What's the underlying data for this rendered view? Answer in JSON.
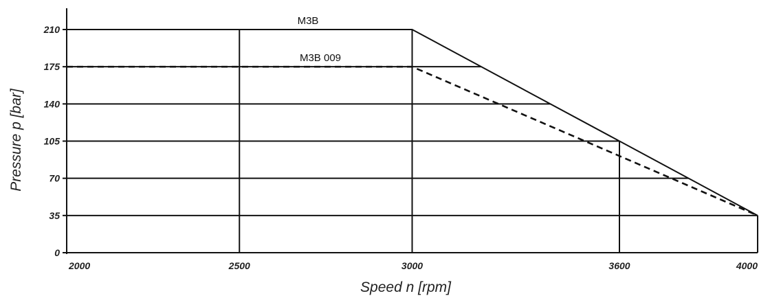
{
  "chart_data": {
    "type": "line",
    "title": "",
    "xlabel": "Speed n [rpm]",
    "ylabel": "Pressure p [bar]",
    "xlim": [
      2000,
      4000
    ],
    "ylim": [
      0,
      210
    ],
    "x_ticks": [
      2000,
      2500,
      3000,
      3600,
      4000
    ],
    "y_ticks": [
      0,
      35,
      70,
      105,
      140,
      175,
      210
    ],
    "grid": true,
    "legend": "none",
    "series": [
      {
        "name": "M3B",
        "style": "solid",
        "x": [
          2000,
          3000,
          4000
        ],
        "y": [
          210,
          210,
          35
        ]
      },
      {
        "name": "M3B 009",
        "style": "dashed",
        "x": [
          2000,
          3000,
          4000
        ],
        "y": [
          175,
          175,
          35
        ]
      }
    ],
    "colors": {
      "line": "#111111",
      "grid": "#111111",
      "text": "#222222"
    }
  }
}
